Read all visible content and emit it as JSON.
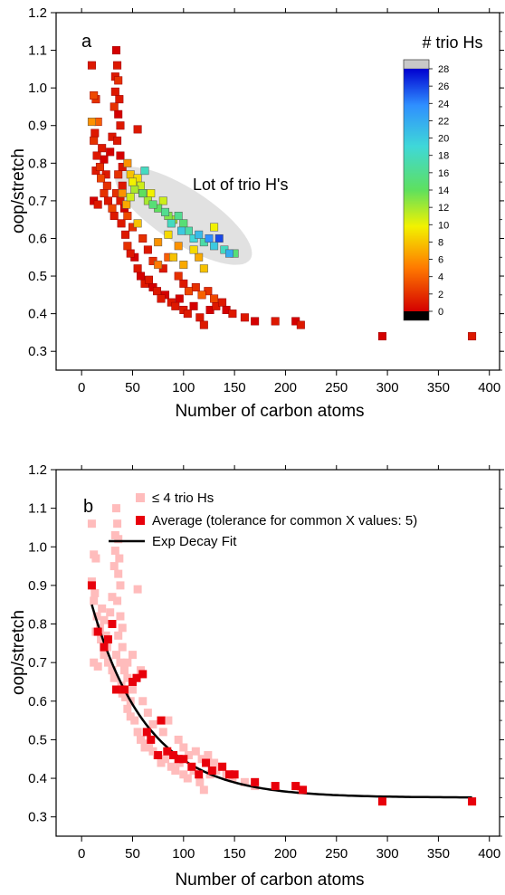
{
  "figure": {
    "panel_a": {
      "letter": "a",
      "colorbar": {
        "title": "# trio Hs",
        "ticks": [
          "28",
          "26",
          "24",
          "22",
          "20",
          "18",
          "16",
          "14",
          "12",
          "10",
          "8",
          "6",
          "4",
          "2",
          "0"
        ]
      },
      "annotation": "Lot of trio H's"
    },
    "panel_b": {
      "letter": "b",
      "legend": {
        "pink": "≤ 4 trio Hs",
        "red": "Average (tolerance for common X values: 5)",
        "line": "Exp Decay Fit"
      }
    }
  },
  "chart_data": [
    {
      "type": "scatter",
      "panel": "a",
      "xlabel": "Number of carbon atoms",
      "ylabel": "oop/stretch",
      "xlim": [
        -25,
        410
      ],
      "ylim": [
        0.25,
        1.2
      ],
      "x_ticks": [
        0,
        50,
        100,
        150,
        200,
        250,
        300,
        350,
        400
      ],
      "y_ticks": [
        0.3,
        0.4,
        0.5,
        0.6,
        0.7,
        0.8,
        0.9,
        1.0,
        1.1,
        1.2
      ],
      "color_variable": "# trio Hs",
      "color_range": [
        0,
        28
      ],
      "points": [
        [
          10,
          1.06,
          1
        ],
        [
          12,
          0.98,
          3
        ],
        [
          14,
          0.97,
          2
        ],
        [
          10,
          0.91,
          6
        ],
        [
          13,
          0.88,
          1
        ],
        [
          16,
          0.91,
          4
        ],
        [
          12,
          0.86,
          2
        ],
        [
          15,
          0.82,
          1
        ],
        [
          18,
          0.79,
          2
        ],
        [
          20,
          0.84,
          1
        ],
        [
          22,
          0.81,
          0
        ],
        [
          24,
          0.77,
          1
        ],
        [
          19,
          0.76,
          3
        ],
        [
          25,
          0.74,
          2
        ],
        [
          14,
          0.78,
          1
        ],
        [
          22,
          0.72,
          2
        ],
        [
          26,
          0.7,
          1
        ],
        [
          30,
          0.68,
          3
        ],
        [
          32,
          0.66,
          1
        ],
        [
          12,
          0.7,
          0
        ],
        [
          16,
          0.69,
          1
        ],
        [
          28,
          0.83,
          0
        ],
        [
          30,
          0.87,
          1
        ],
        [
          32,
          0.95,
          2
        ],
        [
          33,
          1.03,
          1
        ],
        [
          34,
          1.1,
          0
        ],
        [
          35,
          1.06,
          1
        ],
        [
          33,
          0.99,
          1
        ],
        [
          36,
          1.02,
          2
        ],
        [
          37,
          0.97,
          1
        ],
        [
          36,
          0.93,
          0
        ],
        [
          38,
          0.9,
          1
        ],
        [
          35,
          0.86,
          1
        ],
        [
          38,
          0.82,
          0
        ],
        [
          40,
          0.79,
          1
        ],
        [
          36,
          0.77,
          2
        ],
        [
          40,
          0.74,
          1
        ],
        [
          38,
          0.7,
          1
        ],
        [
          42,
          0.68,
          0
        ],
        [
          34,
          0.72,
          2
        ],
        [
          39,
          0.64,
          1
        ],
        [
          43,
          0.61,
          1
        ],
        [
          45,
          0.58,
          2
        ],
        [
          48,
          0.56,
          1
        ],
        [
          52,
          0.55,
          0
        ],
        [
          55,
          0.52,
          1
        ],
        [
          58,
          0.5,
          0
        ],
        [
          62,
          0.48,
          1
        ],
        [
          66,
          0.49,
          1
        ],
        [
          70,
          0.47,
          0
        ],
        [
          74,
          0.46,
          1
        ],
        [
          78,
          0.44,
          1
        ],
        [
          82,
          0.45,
          0
        ],
        [
          88,
          0.43,
          1
        ],
        [
          92,
          0.42,
          1
        ],
        [
          96,
          0.44,
          0
        ],
        [
          100,
          0.41,
          1
        ],
        [
          104,
          0.4,
          1
        ],
        [
          110,
          0.42,
          0
        ],
        [
          116,
          0.39,
          1
        ],
        [
          120,
          0.37,
          1
        ],
        [
          126,
          0.41,
          0
        ],
        [
          132,
          0.42,
          1
        ],
        [
          138,
          0.43,
          1
        ],
        [
          142,
          0.41,
          0
        ],
        [
          148,
          0.4,
          1
        ],
        [
          55,
          0.89,
          1
        ],
        [
          45,
          0.66,
          3
        ],
        [
          50,
          0.63,
          2
        ],
        [
          60,
          0.6,
          2
        ],
        [
          65,
          0.57,
          1
        ],
        [
          70,
          0.54,
          2
        ],
        [
          80,
          0.52,
          1
        ],
        [
          85,
          0.55,
          4
        ],
        [
          95,
          0.5,
          2
        ],
        [
          100,
          0.48,
          1
        ],
        [
          105,
          0.46,
          3
        ],
        [
          112,
          0.47,
          2
        ],
        [
          118,
          0.45,
          4
        ],
        [
          124,
          0.46,
          2
        ],
        [
          130,
          0.44,
          3
        ],
        [
          160,
          0.39,
          1
        ],
        [
          170,
          0.38,
          0
        ],
        [
          190,
          0.38,
          1
        ],
        [
          210,
          0.38,
          0
        ],
        [
          215,
          0.37,
          1
        ],
        [
          295,
          0.34,
          0
        ],
        [
          383,
          0.34,
          1
        ],
        [
          45,
          0.8,
          6
        ],
        [
          48,
          0.77,
          8
        ],
        [
          50,
          0.75,
          10
        ],
        [
          52,
          0.73,
          12
        ],
        [
          55,
          0.76,
          9
        ],
        [
          58,
          0.74,
          11
        ],
        [
          60,
          0.72,
          14
        ],
        [
          62,
          0.78,
          18
        ],
        [
          65,
          0.7,
          12
        ],
        [
          68,
          0.72,
          10
        ],
        [
          70,
          0.69,
          15
        ],
        [
          75,
          0.68,
          14
        ],
        [
          80,
          0.7,
          11
        ],
        [
          82,
          0.67,
          16
        ],
        [
          85,
          0.66,
          13
        ],
        [
          88,
          0.64,
          18
        ],
        [
          90,
          0.65,
          12
        ],
        [
          95,
          0.66,
          16
        ],
        [
          98,
          0.62,
          20
        ],
        [
          100,
          0.64,
          15
        ],
        [
          105,
          0.62,
          17
        ],
        [
          110,
          0.6,
          19
        ],
        [
          115,
          0.61,
          21
        ],
        [
          120,
          0.59,
          17
        ],
        [
          125,
          0.6,
          24
        ],
        [
          130,
          0.58,
          20
        ],
        [
          135,
          0.6,
          26
        ],
        [
          140,
          0.57,
          18
        ],
        [
          145,
          0.56,
          22
        ],
        [
          150,
          0.56,
          15
        ],
        [
          40,
          0.72,
          6
        ],
        [
          44,
          0.69,
          7
        ],
        [
          55,
          0.64,
          8
        ],
        [
          60,
          0.72,
          7
        ],
        [
          75,
          0.59,
          6
        ],
        [
          90,
          0.55,
          8
        ],
        [
          100,
          0.53,
          7
        ],
        [
          110,
          0.57,
          9
        ],
        [
          120,
          0.52,
          8
        ],
        [
          95,
          0.58,
          6
        ],
        [
          115,
          0.55,
          7
        ],
        [
          75,
          0.53,
          5
        ],
        [
          85,
          0.61,
          9
        ],
        [
          130,
          0.63,
          10
        ],
        [
          48,
          0.71,
          11
        ]
      ],
      "annotation": "Lot of trio H's"
    },
    {
      "type": "scatter",
      "panel": "b",
      "xlabel": "Number of carbon atoms",
      "ylabel": "oop/stretch",
      "xlim": [
        -25,
        410
      ],
      "ylim": [
        0.25,
        1.2
      ],
      "x_ticks": [
        0,
        50,
        100,
        150,
        200,
        250,
        300,
        350,
        400
      ],
      "y_ticks": [
        0.3,
        0.4,
        0.5,
        0.6,
        0.7,
        0.8,
        0.9,
        1.0,
        1.1,
        1.2
      ],
      "series": [
        {
          "name": "≤ 4 trio Hs",
          "points": [
            [
              10,
              1.06
            ],
            [
              12,
              0.98
            ],
            [
              14,
              0.97
            ],
            [
              10,
              0.91
            ],
            [
              13,
              0.88
            ],
            [
              12,
              0.86
            ],
            [
              15,
              0.82
            ],
            [
              18,
              0.79
            ],
            [
              20,
              0.84
            ],
            [
              22,
              0.81
            ],
            [
              24,
              0.77
            ],
            [
              19,
              0.76
            ],
            [
              25,
              0.74
            ],
            [
              14,
              0.78
            ],
            [
              22,
              0.72
            ],
            [
              26,
              0.7
            ],
            [
              30,
              0.68
            ],
            [
              32,
              0.66
            ],
            [
              12,
              0.7
            ],
            [
              16,
              0.69
            ],
            [
              28,
              0.83
            ],
            [
              30,
              0.87
            ],
            [
              32,
              0.95
            ],
            [
              33,
              1.03
            ],
            [
              34,
              1.1
            ],
            [
              35,
              1.06
            ],
            [
              33,
              0.99
            ],
            [
              36,
              1.02
            ],
            [
              37,
              0.97
            ],
            [
              36,
              0.93
            ],
            [
              38,
              0.9
            ],
            [
              35,
              0.86
            ],
            [
              38,
              0.82
            ],
            [
              40,
              0.79
            ],
            [
              36,
              0.77
            ],
            [
              40,
              0.74
            ],
            [
              38,
              0.7
            ],
            [
              42,
              0.68
            ],
            [
              34,
              0.72
            ],
            [
              39,
              0.64
            ],
            [
              43,
              0.61
            ],
            [
              45,
              0.58
            ],
            [
              48,
              0.56
            ],
            [
              52,
              0.55
            ],
            [
              55,
              0.52
            ],
            [
              58,
              0.5
            ],
            [
              62,
              0.48
            ],
            [
              66,
              0.49
            ],
            [
              70,
              0.47
            ],
            [
              74,
              0.46
            ],
            [
              78,
              0.44
            ],
            [
              82,
              0.45
            ],
            [
              88,
              0.43
            ],
            [
              92,
              0.42
            ],
            [
              96,
              0.44
            ],
            [
              100,
              0.41
            ],
            [
              104,
              0.4
            ],
            [
              110,
              0.42
            ],
            [
              116,
              0.39
            ],
            [
              120,
              0.37
            ],
            [
              126,
              0.41
            ],
            [
              132,
              0.42
            ],
            [
              138,
              0.43
            ],
            [
              142,
              0.41
            ],
            [
              148,
              0.4
            ],
            [
              55,
              0.89
            ],
            [
              45,
              0.66
            ],
            [
              50,
              0.63
            ],
            [
              60,
              0.6
            ],
            [
              65,
              0.57
            ],
            [
              70,
              0.54
            ],
            [
              80,
              0.52
            ],
            [
              85,
              0.55
            ],
            [
              95,
              0.5
            ],
            [
              100,
              0.48
            ],
            [
              105,
              0.46
            ],
            [
              112,
              0.47
            ],
            [
              118,
              0.45
            ],
            [
              124,
              0.46
            ],
            [
              130,
              0.44
            ],
            [
              160,
              0.39
            ],
            [
              170,
              0.38
            ],
            [
              190,
              0.38
            ],
            [
              210,
              0.38
            ],
            [
              215,
              0.37
            ],
            [
              295,
              0.34
            ],
            [
              383,
              0.34
            ],
            [
              50,
              0.72
            ],
            [
              45,
              0.7
            ],
            [
              58,
              0.68
            ],
            [
              40,
              0.62
            ],
            [
              48,
              0.6
            ]
          ]
        },
        {
          "name": "Average (tolerance for common X values: 5)",
          "points": [
            [
              10,
              0.9
            ],
            [
              16,
              0.78
            ],
            [
              22,
              0.74
            ],
            [
              26,
              0.76
            ],
            [
              30,
              0.8
            ],
            [
              34,
              0.63
            ],
            [
              42,
              0.63
            ],
            [
              50,
              0.65
            ],
            [
              54,
              0.66
            ],
            [
              60,
              0.67
            ],
            [
              64,
              0.52
            ],
            [
              68,
              0.5
            ],
            [
              75,
              0.46
            ],
            [
              78,
              0.55
            ],
            [
              84,
              0.47
            ],
            [
              90,
              0.46
            ],
            [
              95,
              0.45
            ],
            [
              100,
              0.45
            ],
            [
              108,
              0.43
            ],
            [
              115,
              0.41
            ],
            [
              122,
              0.44
            ],
            [
              128,
              0.42
            ],
            [
              138,
              0.43
            ],
            [
              145,
              0.41
            ],
            [
              150,
              0.41
            ],
            [
              170,
              0.39
            ],
            [
              190,
              0.38
            ],
            [
              210,
              0.38
            ],
            [
              217,
              0.37
            ],
            [
              295,
              0.34
            ],
            [
              383,
              0.34
            ]
          ]
        },
        {
          "name": "Exp Decay Fit",
          "type": "line",
          "fit": {
            "model": "y0 + A*exp(-x/t)",
            "y0": 0.35,
            "A": 0.6,
            "t": 55
          },
          "x_range": [
            10,
            383
          ]
        }
      ]
    }
  ]
}
